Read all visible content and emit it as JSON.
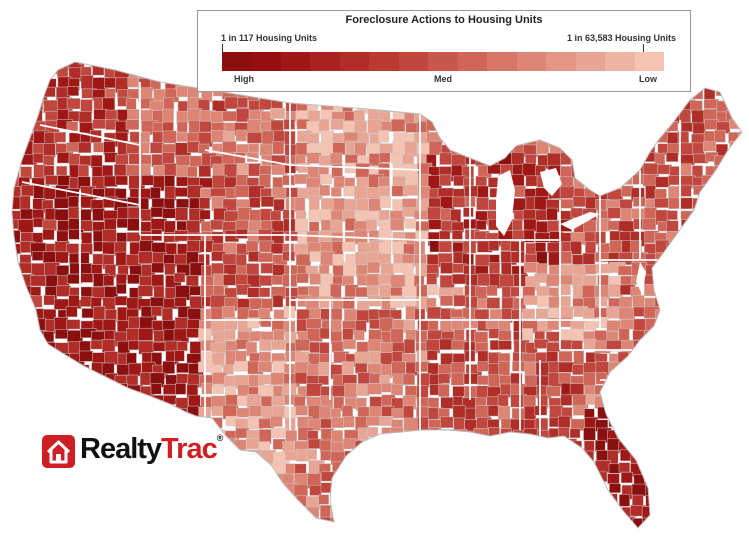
{
  "legend": {
    "title": "Foreclosure Actions to Housing Units",
    "left_end": "1 in 117 Housing Units",
    "right_end": "1 in 63,583 Housing Units",
    "labels": [
      "High",
      "Med",
      "Low"
    ],
    "colors": [
      "#8c0f0f",
      "#960f10",
      "#a01816",
      "#a82320",
      "#b12e28",
      "#ba3a32",
      "#c1473e",
      "#c8574c",
      "#d06658",
      "#d77667",
      "#de8676",
      "#e49585",
      "#e8a594",
      "#efb5a3",
      "#f4c3b1"
    ]
  },
  "logo": {
    "word1": "Realty",
    "word2": "Trac",
    "mark": "®"
  },
  "map_colors": {
    "background": "#ffffff",
    "border": "#c9c9c9",
    "state_border": "#ffffff",
    "fill_levels": [
      "#8c0f0f",
      "#a01816",
      "#b12e28",
      "#c1473e",
      "#d06658",
      "#de8676",
      "#e8a594",
      "#f4c3b1"
    ]
  }
}
